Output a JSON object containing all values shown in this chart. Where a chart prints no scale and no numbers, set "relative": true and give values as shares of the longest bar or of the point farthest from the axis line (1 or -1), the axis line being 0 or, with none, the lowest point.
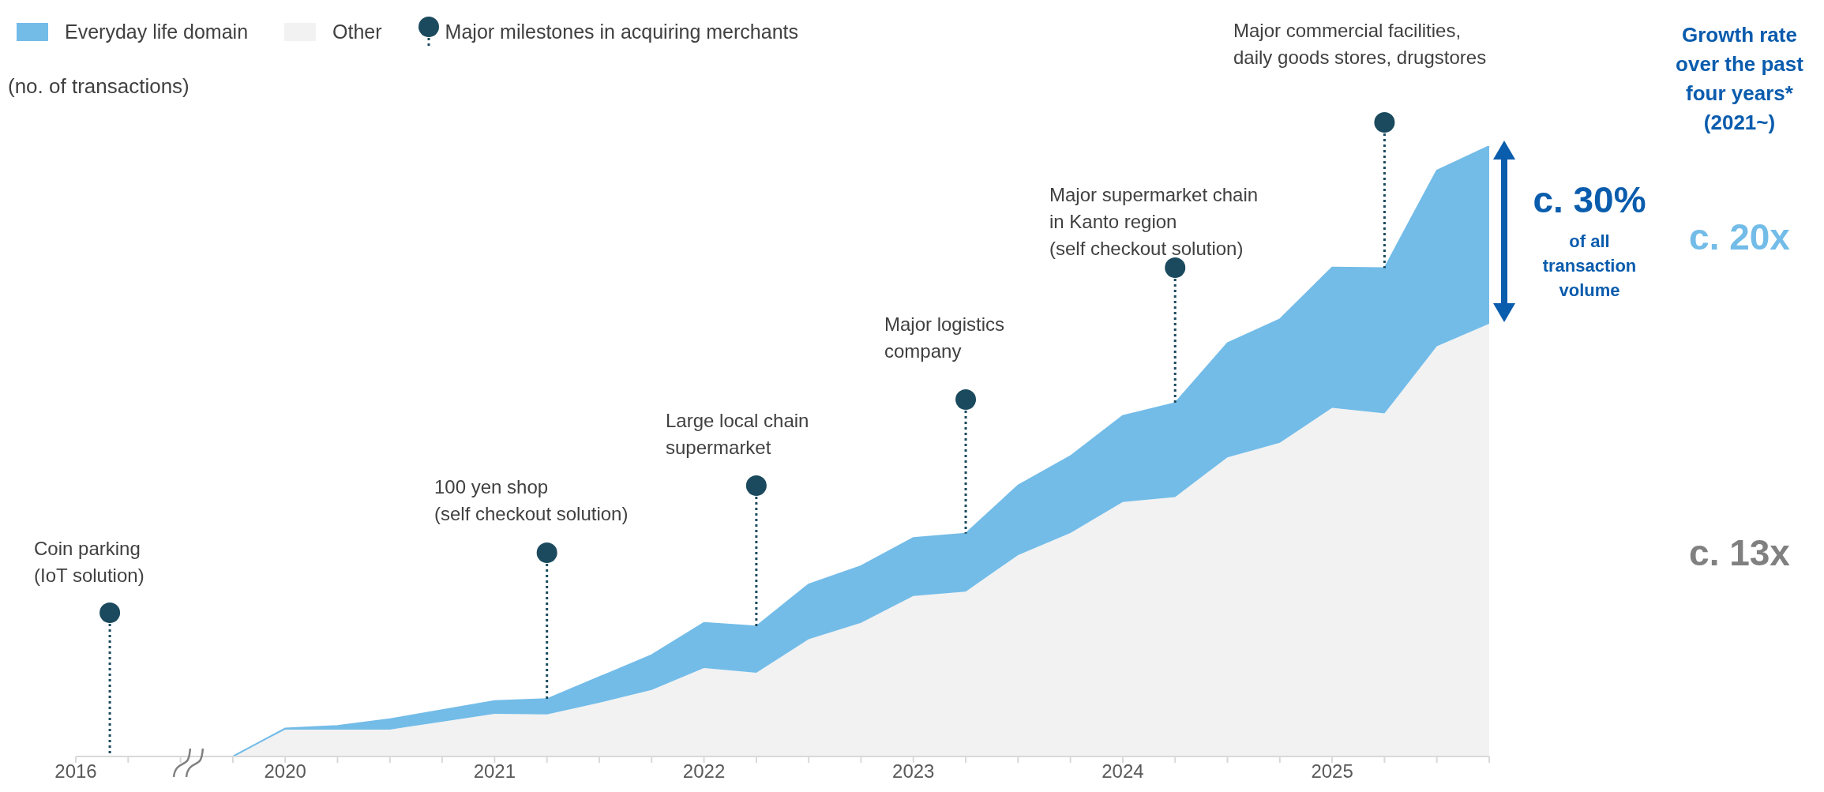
{
  "chart_data": {
    "type": "area",
    "stacked": true,
    "relative": true,
    "ylabel": "(no. of transactions)",
    "legend": "top left",
    "categories": [
      "2016",
      null,
      null,
      null,
      "2020",
      null,
      null,
      null,
      "2021",
      null,
      null,
      null,
      "2022",
      null,
      null,
      null,
      "2023",
      null,
      null,
      null,
      "2024",
      null,
      null,
      null,
      "2025",
      null,
      null,
      null
    ],
    "series": [
      {
        "name": "Other",
        "color": "#f2f2f2",
        "values": [
          0,
          0,
          0,
          0,
          0.044,
          0.044,
          0.044,
          0.057,
          0.07,
          0.069,
          0.088,
          0.109,
          0.145,
          0.137,
          0.192,
          0.219,
          0.263,
          0.27,
          0.33,
          0.366,
          0.417,
          0.425,
          0.49,
          0.514,
          0.571,
          0.562,
          0.672,
          0.709
        ]
      },
      {
        "name": "Everyday life domain",
        "color": "#73bce8",
        "values": [
          0,
          0,
          0,
          0,
          0.002,
          0.006,
          0.017,
          0.019,
          0.021,
          0.025,
          0.042,
          0.057,
          0.074,
          0.076,
          0.09,
          0.093,
          0.095,
          0.095,
          0.114,
          0.126,
          0.141,
          0.154,
          0.187,
          0.202,
          0.23,
          0.238,
          0.288,
          0.291
        ]
      }
    ],
    "annotations": [
      "Major milestones in acquiring merchants",
      "Coin parking\n(IoT solution)",
      "100 yen shop\n(self checkout solution)",
      "Large local chain\nsupermarket",
      "Major logistics\ncompany",
      "Major supermarket chain\nin Kanto region\n(self checkout solution)",
      "Major commercial facilities,\ndaily goods stores, drugstores",
      "Growth rate\nover the past\nfour years*\n(2021~)",
      "c. 30%",
      "of all\ntransaction\nvolume",
      "c. 20x",
      "c. 13x"
    ]
  }
}
